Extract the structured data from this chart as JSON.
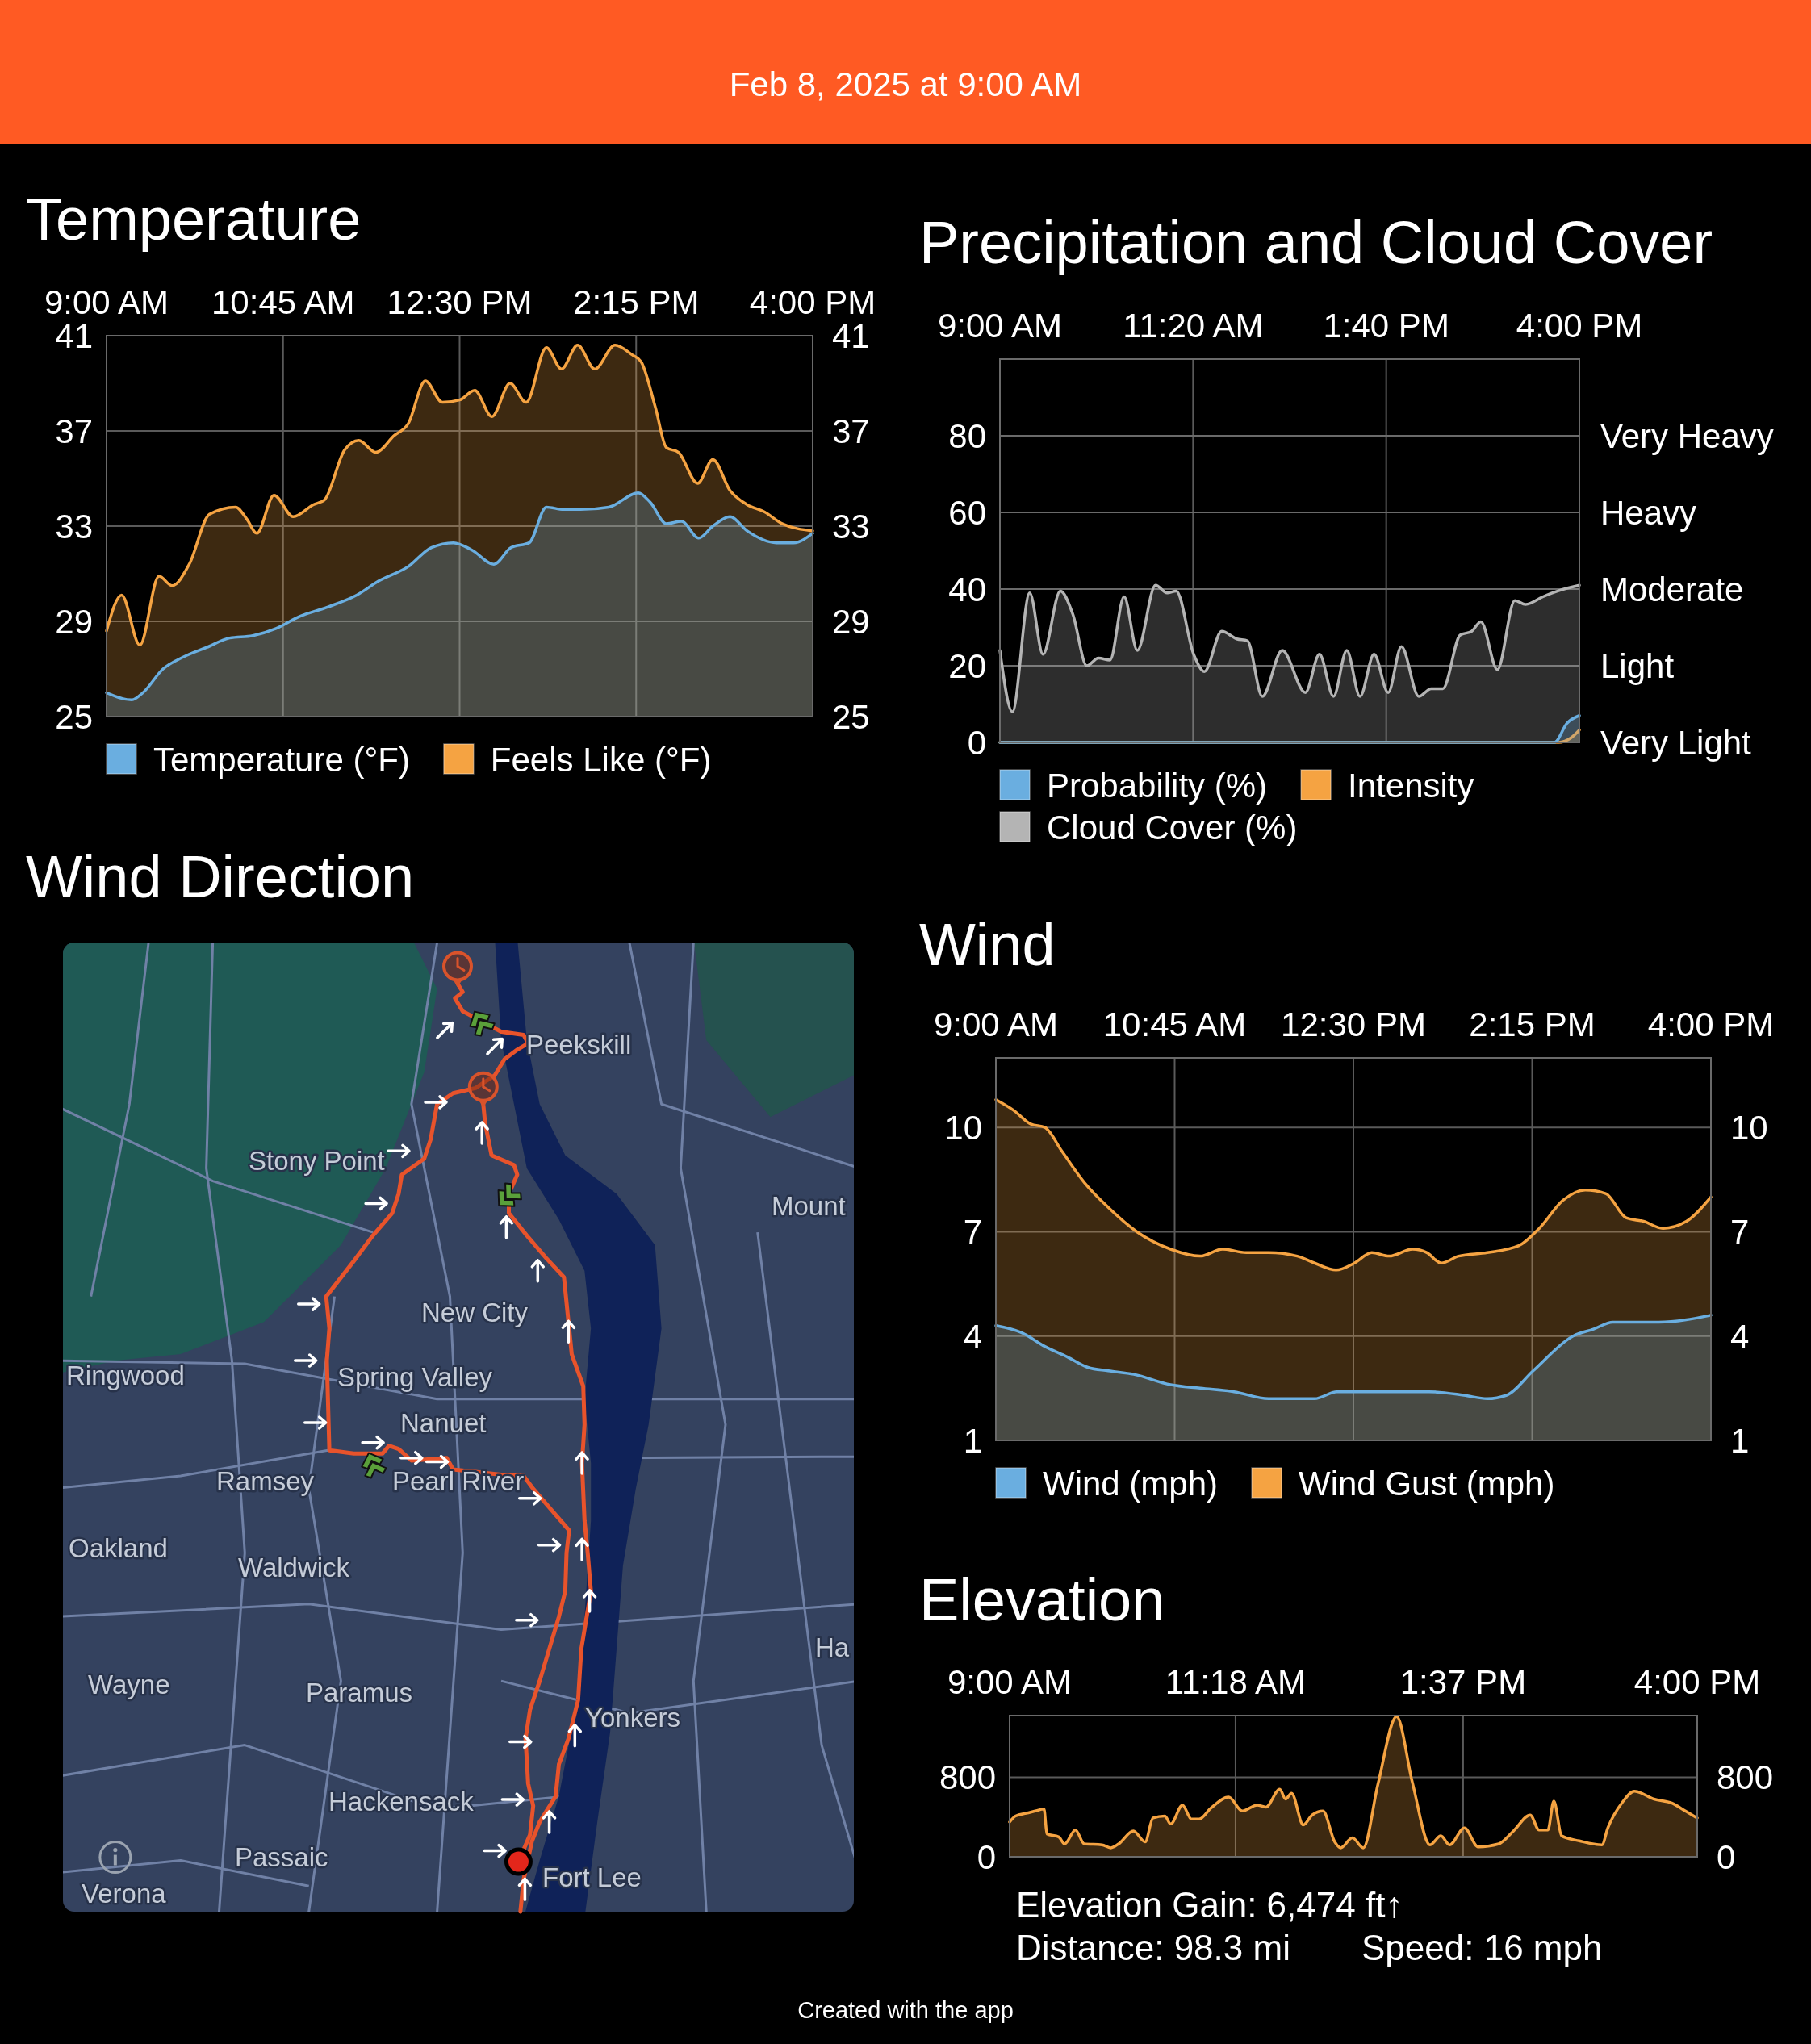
{
  "chart_data": [
    {
      "type": "area",
      "title": "Temperature",
      "subtitle": "Feb 8, 2025 at 9:00 AM",
      "xlim": [
        9,
        16
      ],
      "xticks": [
        {
          "value": 9,
          "label": "9:00 AM"
        },
        {
          "value": 10.75,
          "label": "10:45 AM"
        },
        {
          "value": 12.5,
          "label": "12:30 PM"
        },
        {
          "value": 14.25,
          "label": "2:15 PM"
        },
        {
          "value": 16,
          "label": "4:00 PM"
        }
      ],
      "ylim": [
        25,
        41
      ],
      "yticks": [
        25,
        29,
        33,
        37,
        41
      ],
      "y2lim": [
        25,
        41
      ],
      "y2ticks": [
        25,
        29,
        33,
        37,
        41
      ],
      "grid": true,
      "legend": "bottom",
      "series": [
        {
          "name": "Temperature (°F)",
          "color": "#6aaee0",
          "x": [
            9,
            9.25,
            9.36,
            9.56,
            9.76,
            9.99,
            10.22,
            10.45,
            10.68,
            10.91,
            11.19,
            11.48,
            11.7,
            11.99,
            12.22,
            12.44,
            12.62,
            12.84,
            13.01,
            13.19,
            13.36,
            13.53,
            13.7,
            13.98,
            14.27,
            14.39,
            14.55,
            14.7,
            14.87,
            15.01,
            15.18,
            15.35,
            15.64,
            15.81,
            16
          ],
          "values": [
            26,
            25.7,
            26,
            27,
            27.5,
            27.9,
            28.3,
            28.4,
            28.7,
            29.2,
            29.6,
            30.1,
            30.7,
            31.3,
            32.1,
            32.3,
            32,
            31.4,
            32.1,
            32.3,
            33.8,
            33.7,
            33.7,
            33.8,
            34.4,
            34,
            33.1,
            33.2,
            32.5,
            33,
            33.4,
            32.8,
            32.3,
            32.3,
            32.7
          ]
        },
        {
          "name": "Feels Like (°F)",
          "color": "#f5a342",
          "x": [
            9,
            9.15,
            9.33,
            9.52,
            9.65,
            9.82,
            10.02,
            10.28,
            10.39,
            10.49,
            10.66,
            10.85,
            11.05,
            11.16,
            11.36,
            11.5,
            11.67,
            11.85,
            11.99,
            12.16,
            12.33,
            12.5,
            12.65,
            12.82,
            13,
            13.16,
            13.36,
            13.51,
            13.67,
            13.84,
            14.04,
            14.21,
            14.3,
            14.44,
            14.55,
            14.67,
            14.86,
            15.01,
            15.18,
            15.35,
            15.52,
            15.7,
            16
          ],
          "values": [
            28.6,
            30.1,
            28,
            30.9,
            30.5,
            31.4,
            33.5,
            33.8,
            33.3,
            32.7,
            34.3,
            33.4,
            33.9,
            34.1,
            36.2,
            36.6,
            36.1,
            36.8,
            37.3,
            39.1,
            38.2,
            38.3,
            38.7,
            37.6,
            39,
            38.2,
            40.5,
            39.6,
            40.6,
            39.6,
            40.6,
            40.2,
            39.9,
            38,
            36.3,
            36.1,
            34.8,
            35.8,
            34.5,
            33.9,
            33.6,
            33.1,
            32.8
          ]
        }
      ]
    },
    {
      "type": "area",
      "title": "Precipitation and Cloud Cover",
      "xlim": [
        9,
        16
      ],
      "xticks": [
        {
          "value": 9,
          "label": "9:00 AM"
        },
        {
          "value": 11.3333,
          "label": "11:20 AM"
        },
        {
          "value": 13.6667,
          "label": "1:40 PM"
        },
        {
          "value": 16,
          "label": "4:00 PM"
        }
      ],
      "ylim": [
        0,
        100
      ],
      "yticks": [
        0,
        20,
        40,
        60,
        80
      ],
      "grid": "x",
      "legend": "bottom",
      "ref_lines": [
        {
          "axis": "y",
          "value": 20,
          "label": "Light"
        },
        {
          "axis": "y",
          "value": 40,
          "label": "Moderate"
        },
        {
          "axis": "y",
          "value": 60,
          "label": "Heavy"
        },
        {
          "axis": "y",
          "value": 80,
          "label": "Very Heavy"
        }
      ],
      "annotations": [
        "Very Light"
      ],
      "series": [
        {
          "name": "Probability (%)",
          "color": "#6aaee0",
          "x": [
            9,
            15.7,
            15.85,
            16
          ],
          "values": [
            0,
            0,
            5,
            7
          ]
        },
        {
          "name": "Intensity",
          "color": "#f5a342",
          "x": [
            9,
            15.75,
            15.9,
            16
          ],
          "values": [
            0,
            0,
            1.2,
            3.2
          ]
        },
        {
          "name": "Cloud Cover (%)",
          "color": "#b4b4b4",
          "x": [
            9,
            9.15,
            9.36,
            9.52,
            9.73,
            9.88,
            10.05,
            10.19,
            10.33,
            10.5,
            10.66,
            10.88,
            11.02,
            11.13,
            11.34,
            11.47,
            11.68,
            11.86,
            11.99,
            12.17,
            12.41,
            12.69,
            12.86,
            13.03,
            13.19,
            13.35,
            13.52,
            13.69,
            13.85,
            14.06,
            14.21,
            14.35,
            14.56,
            14.7,
            14.81,
            15.01,
            15.22,
            15.35,
            15.56,
            15.74,
            16
          ],
          "values": [
            24,
            8,
            39,
            23,
            39.5,
            33.5,
            20,
            22,
            21.5,
            38,
            24,
            41,
            39,
            39.5,
            23,
            18.5,
            29,
            27,
            26.5,
            12,
            24,
            13,
            23,
            12,
            24,
            12,
            23,
            13,
            25,
            12,
            14,
            14,
            28,
            29,
            31.5,
            19,
            37,
            36,
            38,
            39.5,
            41
          ]
        }
      ]
    },
    {
      "type": "other",
      "title": "Wind Direction",
      "annotations": [
        "Peekskill",
        "Stony Point",
        "Mount",
        "New City",
        "Ringwood",
        "Spring Valley",
        "Nanuet",
        "Ramsey",
        "Pearl River",
        "Oakland",
        "Waldwick",
        "Ha",
        "Wayne",
        "Paramus",
        "Yonkers",
        "Hackensack",
        "Passaic",
        "Fort Lee",
        "Verona"
      ]
    },
    {
      "type": "area",
      "title": "Wind",
      "xlim": [
        9,
        16
      ],
      "xticks": [
        {
          "value": 9,
          "label": "9:00 AM"
        },
        {
          "value": 10.75,
          "label": "10:45 AM"
        },
        {
          "value": 12.5,
          "label": "12:30 PM"
        },
        {
          "value": 14.25,
          "label": "2:15 PM"
        },
        {
          "value": 16,
          "label": "4:00 PM"
        }
      ],
      "ylim": [
        1,
        12
      ],
      "yticks": [
        1,
        4,
        7,
        10
      ],
      "y2lim": [
        1,
        12
      ],
      "y2ticks": [
        1,
        4,
        7,
        10
      ],
      "grid": true,
      "legend": "bottom",
      "series": [
        {
          "name": "Wind (mph)",
          "color": "#6aaee0",
          "x": [
            9,
            9.25,
            9.48,
            9.7,
            9.9,
            10.1,
            10.35,
            10.71,
            11,
            11.33,
            11.67,
            12.12,
            12.34,
            12.68,
            13.02,
            13.24,
            13.58,
            13.81,
            14,
            14.26,
            14.65,
            14.85,
            15.04,
            15.49,
            16
          ],
          "values": [
            4.3,
            4.1,
            3.7,
            3.4,
            3.1,
            3,
            2.9,
            2.6,
            2.5,
            2.4,
            2.2,
            2.2,
            2.4,
            2.4,
            2.4,
            2.4,
            2.3,
            2.2,
            2.3,
            3,
            4,
            4.2,
            4.4,
            4.4,
            4.6
          ]
        },
        {
          "name": "Wind Gust (mph)",
          "color": "#f5a342",
          "x": [
            9,
            9.17,
            9.34,
            9.48,
            9.65,
            9.87,
            10.1,
            10.38,
            10.71,
            11,
            11.22,
            11.45,
            11.67,
            11.95,
            12.12,
            12.33,
            12.51,
            12.68,
            12.85,
            13.08,
            13.22,
            13.36,
            13.53,
            13.81,
            14.12,
            14.32,
            14.55,
            14.77,
            14.97,
            15.17,
            15.34,
            15.53,
            15.76,
            16
          ],
          "values": [
            10.8,
            10.5,
            10.1,
            10,
            9.3,
            8.4,
            7.7,
            7,
            6.5,
            6.3,
            6.5,
            6.4,
            6.4,
            6.3,
            6.1,
            5.9,
            6.1,
            6.4,
            6.3,
            6.5,
            6.4,
            6.1,
            6.3,
            6.4,
            6.6,
            7.1,
            7.9,
            8.2,
            8.1,
            7.4,
            7.3,
            7.1,
            7.3,
            8
          ]
        }
      ]
    },
    {
      "type": "area",
      "title": "Elevation",
      "xlim": [
        9,
        16
      ],
      "xticks": [
        {
          "value": 9,
          "label": "9:00 AM"
        },
        {
          "value": 11.3,
          "label": "11:18 AM"
        },
        {
          "value": 13.6167,
          "label": "1:37 PM"
        },
        {
          "value": 16,
          "label": "4:00 PM"
        }
      ],
      "ylim": [
        0,
        1420
      ],
      "yticks": [
        0,
        800
      ],
      "y2lim": [
        0,
        1420
      ],
      "y2ticks": [
        0,
        800
      ],
      "grid": true,
      "series": [
        {
          "color": "#f5a342",
          "x": [
            9,
            9.06,
            9.18,
            9.26,
            9.35,
            9.38,
            9.5,
            9.56,
            9.67,
            9.76,
            9.94,
            10.03,
            10.11,
            10.26,
            10.38,
            10.46,
            10.58,
            10.64,
            10.76,
            10.85,
            10.93,
            11.05,
            11.23,
            11.37,
            11.52,
            11.61,
            11.75,
            11.81,
            11.87,
            11.99,
            12.08,
            12.19,
            12.31,
            12.37,
            12.49,
            12.6,
            12.75,
            12.94,
            13.1,
            13.28,
            13.39,
            13.48,
            13.63,
            13.77,
            13.98,
            14.13,
            14.3,
            14.39,
            14.48,
            14.54,
            14.62,
            14.8,
            15.03,
            15.09,
            15.24,
            15.36,
            15.56,
            15.74,
            15.88,
            16
          ],
          "values": [
            350,
            410,
            440,
            460,
            480,
            230,
            200,
            130,
            270,
            130,
            120,
            90,
            130,
            260,
            150,
            390,
            410,
            330,
            520,
            380,
            380,
            490,
            600,
            460,
            520,
            500,
            680,
            580,
            640,
            320,
            420,
            460,
            150,
            90,
            190,
            90,
            730,
            1410,
            750,
            120,
            210,
            120,
            290,
            100,
            130,
            260,
            420,
            270,
            270,
            560,
            210,
            160,
            120,
            290,
            550,
            660,
            580,
            540,
            460,
            390
          ]
        }
      ],
      "annotations": [
        "Elevation Gain: 6,474 ft↑",
        "Distance: 98.3 mi",
        "Speed: 16 mph",
        "Created with the app"
      ]
    }
  ]
}
